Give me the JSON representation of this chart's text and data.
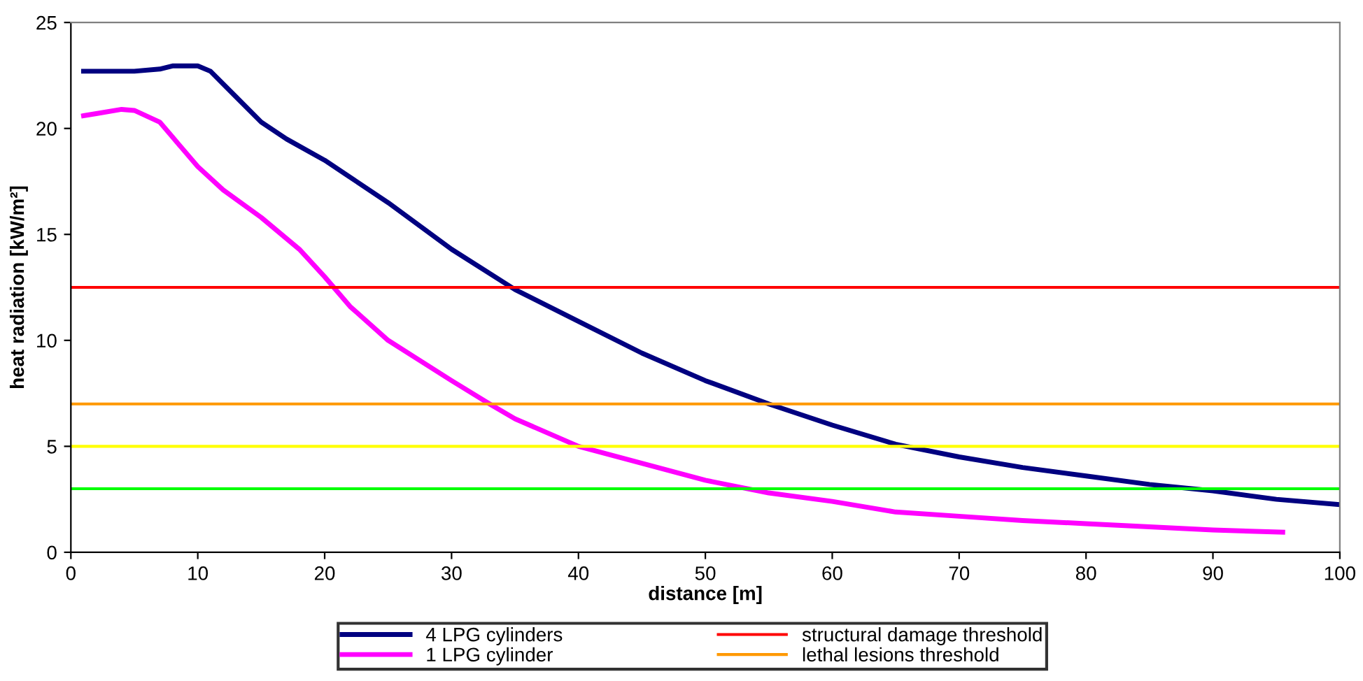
{
  "chart_data": {
    "type": "line",
    "xlabel": "distance [m]",
    "ylabel": "heat radiation [kW/m²]",
    "xlim": [
      0,
      100
    ],
    "xticks": [
      0,
      10,
      20,
      30,
      40,
      50,
      60,
      70,
      80,
      90,
      100
    ],
    "ylim": [
      0,
      25
    ],
    "yticks": [
      0,
      5,
      10,
      15,
      20,
      25
    ],
    "grid": false,
    "legend": "bottom",
    "marker": "none",
    "line_style": "solid",
    "series": [
      {
        "name": "4 LPG cylinders",
        "color": "#000080",
        "x": [
          1,
          5,
          7,
          8,
          10,
          11,
          13,
          15,
          17,
          20,
          25,
          30,
          35,
          40,
          45,
          50,
          55,
          60,
          65,
          70,
          75,
          80,
          85,
          90,
          95,
          100
        ],
        "values": [
          22.7,
          22.7,
          22.8,
          22.95,
          22.95,
          22.7,
          21.5,
          20.3,
          19.5,
          18.5,
          16.5,
          14.3,
          12.4,
          10.9,
          9.4,
          8.1,
          7.0,
          6.0,
          5.1,
          4.5,
          4.0,
          3.6,
          3.2,
          2.9,
          2.5,
          2.25
        ]
      },
      {
        "name": "1 LPG cylinder",
        "color": "#ff00ff",
        "x": [
          1,
          2,
          4,
          5,
          7,
          8,
          10,
          12,
          15,
          18,
          20,
          22,
          25,
          30,
          33,
          35,
          40,
          45,
          50,
          55,
          60,
          65,
          70,
          75,
          80,
          85,
          90,
          95.5
        ],
        "values": [
          20.6,
          20.7,
          20.9,
          20.85,
          20.3,
          19.6,
          18.2,
          17.1,
          15.8,
          14.3,
          13.0,
          11.6,
          10.0,
          8.1,
          7.0,
          6.3,
          5.0,
          4.2,
          3.4,
          2.8,
          2.4,
          1.9,
          1.7,
          1.5,
          1.35,
          1.2,
          1.05,
          0.95
        ]
      }
    ],
    "ref_lines": [
      {
        "axis": "y",
        "value": 12.5,
        "label": "structural damage threshold",
        "color": "#ff0000"
      },
      {
        "axis": "y",
        "value": 7,
        "label": "lethal lesions threshold",
        "color": "#ff9900"
      },
      {
        "axis": "y",
        "value": 5,
        "color": "#ffff00"
      },
      {
        "axis": "y",
        "value": 3,
        "color": "#00ff00"
      }
    ]
  }
}
